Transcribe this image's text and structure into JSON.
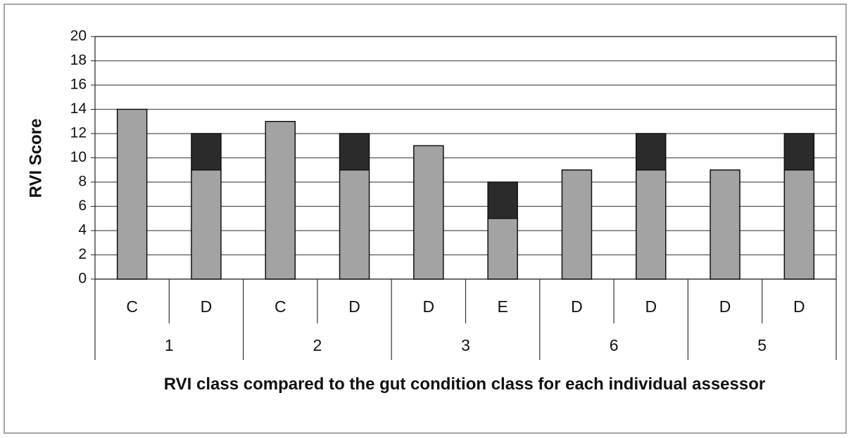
{
  "chart_data": {
    "type": "stacked_bar",
    "y_label": "RVI Score",
    "x_label": "RVI class compared to the gut condition class for each individual assessor",
    "categories": [
      "C",
      "D",
      "C",
      "D",
      "D",
      "E",
      "D",
      "D",
      "D",
      "D"
    ],
    "groups": [
      "1",
      "2",
      "3",
      "6",
      "5"
    ],
    "series": [
      {
        "color": "#a3a3a3",
        "values": [
          14,
          9,
          13,
          9,
          11,
          5,
          9,
          9,
          9,
          9
        ]
      },
      {
        "color": "#2b2b2b",
        "values": [
          null,
          3,
          null,
          3,
          null,
          3,
          null,
          3,
          null,
          3
        ]
      }
    ],
    "ylim": [
      0,
      20
    ],
    "yticks": [
      0,
      2,
      4,
      6,
      8,
      10,
      12,
      14,
      16,
      18,
      20
    ],
    "grid": true
  }
}
